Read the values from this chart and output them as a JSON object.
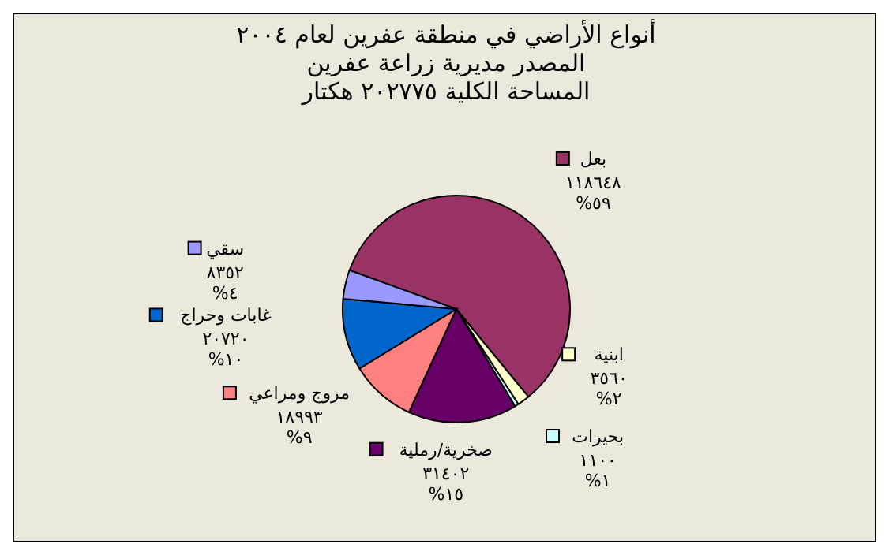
{
  "chart_data": {
    "type": "pie",
    "title": "أنواع الأراضي في منطقة عفرين لعام ٢٠٠٤",
    "subtitle": "المساحة الكلية ٢٠٢٧٧٥ هكتار",
    "annotations": [
      "المصدر مديرية زراعة عفرين"
    ],
    "categories": [
      "بعل",
      "ابنية",
      "بحيرات",
      "صخرية/رملية",
      "مروج ومراعي",
      "غابات وحراج",
      "سقي"
    ],
    "values": [
      118648,
      3560,
      1100,
      31402,
      18993,
      20720,
      8352
    ],
    "value_labels": [
      "١١٨٦٤٨\n%٥٩",
      "٣٥٦٠\n%٢",
      "١١٠٠\n%١",
      "٣١٤٠٢\n%١٥",
      "١٨٩٩٣\n%٩",
      "٢٠٧٢٠\n%١٠",
      "٨٣٥٢\n%٤"
    ],
    "colors": [
      "#993366",
      "#ffffcc",
      "#ccffff",
      "#660066",
      "#ff8080",
      "#0066cc",
      "#9999ff"
    ],
    "legend": "top left"
  }
}
